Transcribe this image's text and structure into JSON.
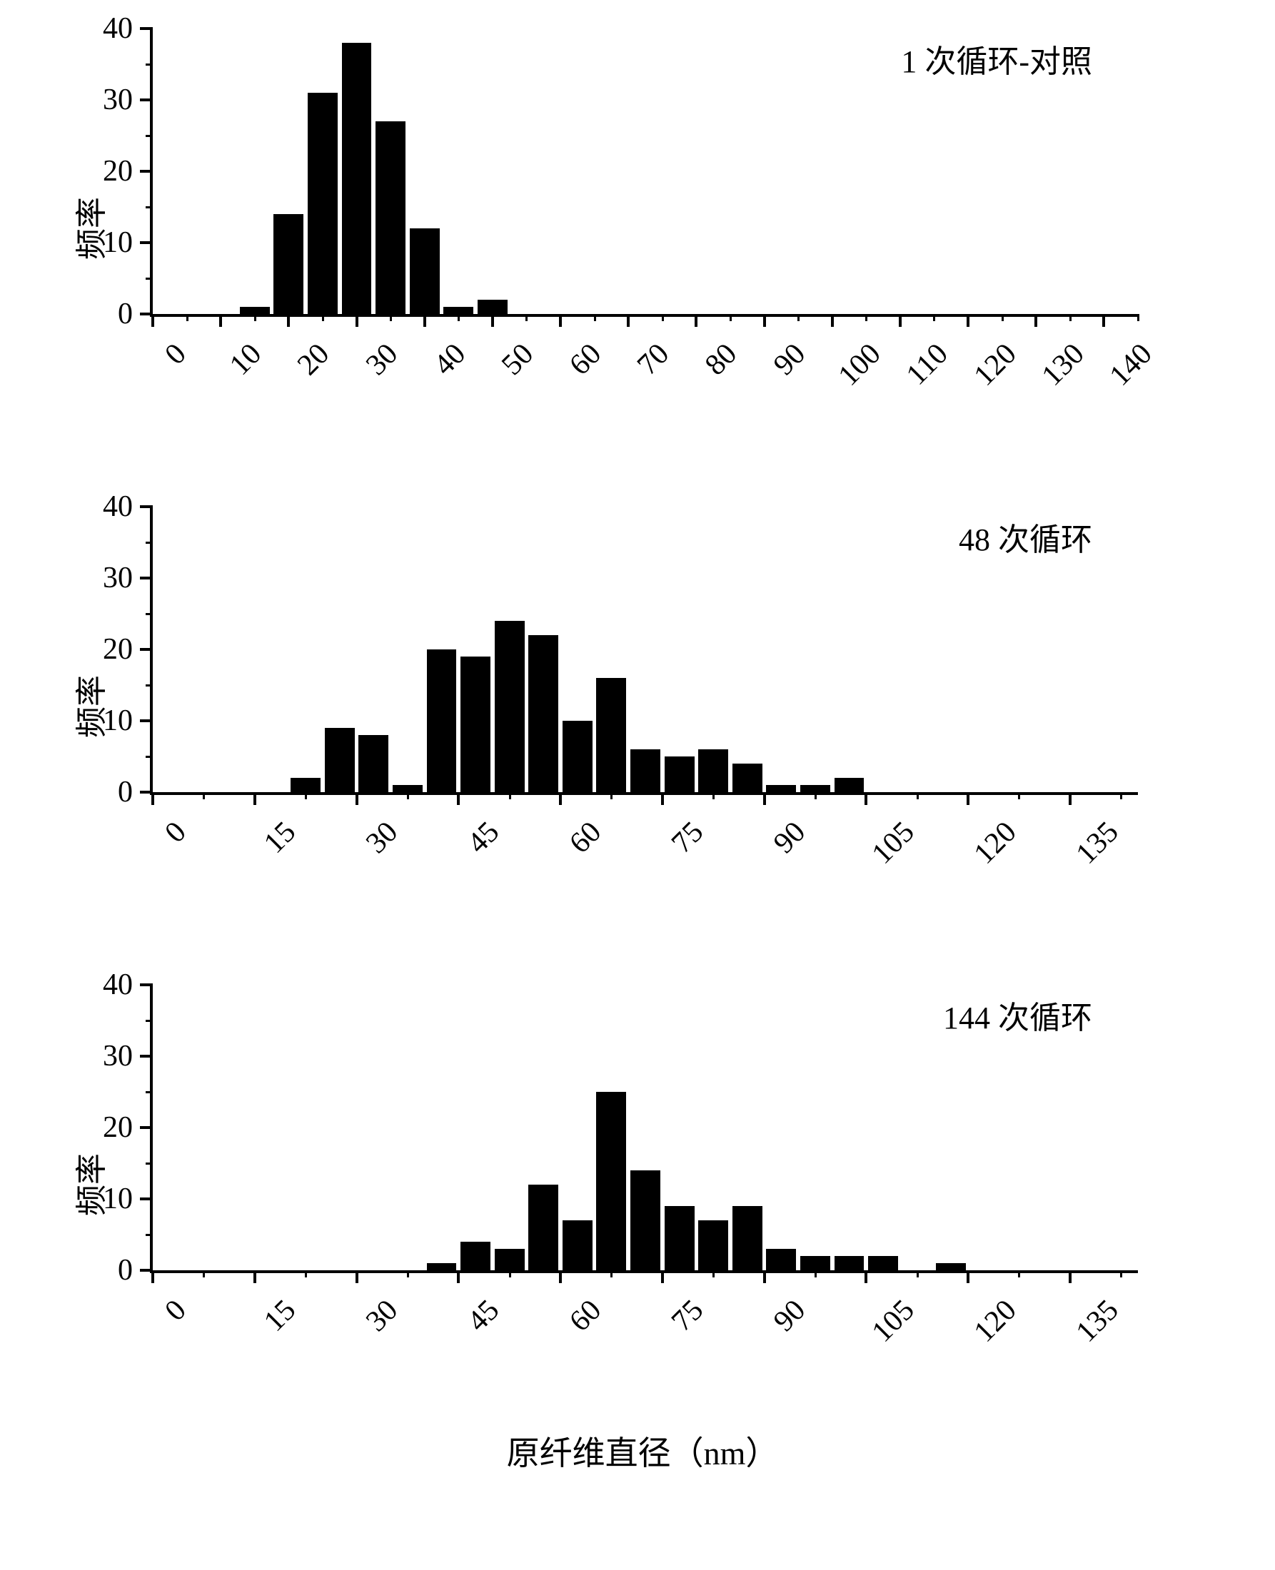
{
  "global_xlabel": "原纤维直径（nm）",
  "common_ylabel": "频率",
  "bar_color": "#000000",
  "axis_color": "#000000",
  "background_color": "#ffffff",
  "title_fontsize": 44,
  "label_fontsize": 44,
  "tick_fontsize": 42,
  "charts": [
    {
      "id": "chart-1-cycle",
      "title": "1 次循环-对照",
      "type": "bar",
      "ylim": [
        0,
        40
      ],
      "ymajor": [
        0,
        10,
        20,
        30,
        40
      ],
      "yminor_step": 5,
      "xlim": [
        0,
        145
      ],
      "xmajor": [
        0,
        10,
        20,
        30,
        40,
        50,
        60,
        70,
        80,
        90,
        100,
        110,
        120,
        130,
        140
      ],
      "xminor_step": 5,
      "bar_half_width_x": 2.2,
      "bars": [
        {
          "x": 15,
          "y": 1
        },
        {
          "x": 20,
          "y": 14
        },
        {
          "x": 25,
          "y": 31
        },
        {
          "x": 30,
          "y": 38
        },
        {
          "x": 35,
          "y": 27
        },
        {
          "x": 40,
          "y": 12
        },
        {
          "x": 45,
          "y": 1
        },
        {
          "x": 50,
          "y": 2
        }
      ]
    },
    {
      "id": "chart-48-cycle",
      "title": "48 次循环",
      "type": "bar",
      "ylim": [
        0,
        40
      ],
      "ymajor": [
        0,
        10,
        20,
        30,
        40
      ],
      "yminor_step": 5,
      "xlim": [
        0,
        145
      ],
      "xmajor": [
        0,
        15,
        30,
        45,
        60,
        75,
        90,
        105,
        120,
        135
      ],
      "xminor_step": 7.5,
      "bar_half_width_x": 2.2,
      "bars": [
        {
          "x": 22.5,
          "y": 2
        },
        {
          "x": 27.5,
          "y": 9
        },
        {
          "x": 32.5,
          "y": 8
        },
        {
          "x": 37.5,
          "y": 1
        },
        {
          "x": 42.5,
          "y": 20
        },
        {
          "x": 47.5,
          "y": 19
        },
        {
          "x": 52.5,
          "y": 24
        },
        {
          "x": 57.5,
          "y": 22
        },
        {
          "x": 62.5,
          "y": 10
        },
        {
          "x": 67.5,
          "y": 16
        },
        {
          "x": 72.5,
          "y": 6
        },
        {
          "x": 77.5,
          "y": 5
        },
        {
          "x": 82.5,
          "y": 6
        },
        {
          "x": 87.5,
          "y": 4
        },
        {
          "x": 92.5,
          "y": 1
        },
        {
          "x": 97.5,
          "y": 1
        },
        {
          "x": 102.5,
          "y": 2
        }
      ]
    },
    {
      "id": "chart-144-cycle",
      "title": "144 次循环",
      "type": "bar",
      "ylim": [
        0,
        40
      ],
      "ymajor": [
        0,
        10,
        20,
        30,
        40
      ],
      "yminor_step": 5,
      "xlim": [
        0,
        145
      ],
      "xmajor": [
        0,
        15,
        30,
        45,
        60,
        75,
        90,
        105,
        120,
        135
      ],
      "xminor_step": 7.5,
      "bar_half_width_x": 2.2,
      "bars": [
        {
          "x": 42.5,
          "y": 1
        },
        {
          "x": 47.5,
          "y": 4
        },
        {
          "x": 52.5,
          "y": 3
        },
        {
          "x": 57.5,
          "y": 12
        },
        {
          "x": 62.5,
          "y": 7
        },
        {
          "x": 67.5,
          "y": 25
        },
        {
          "x": 72.5,
          "y": 14
        },
        {
          "x": 77.5,
          "y": 9
        },
        {
          "x": 82.5,
          "y": 7
        },
        {
          "x": 87.5,
          "y": 9
        },
        {
          "x": 92.5,
          "y": 3
        },
        {
          "x": 97.5,
          "y": 2
        },
        {
          "x": 102.5,
          "y": 2
        },
        {
          "x": 107.5,
          "y": 2
        },
        {
          "x": 117.5,
          "y": 1
        }
      ]
    }
  ]
}
